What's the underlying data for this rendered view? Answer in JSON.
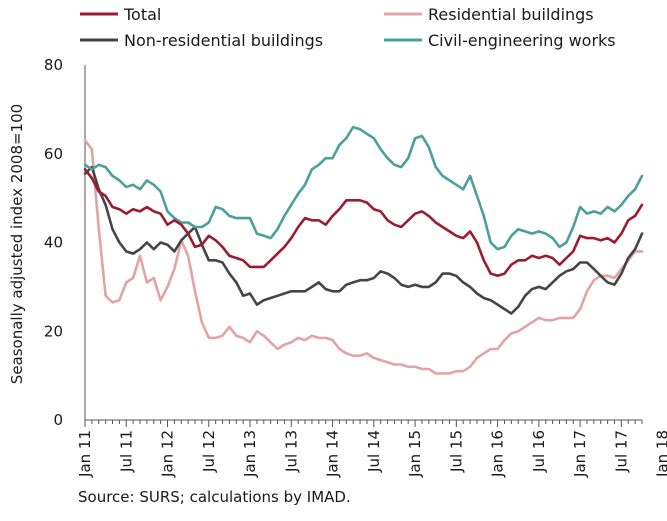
{
  "chart_data": {
    "type": "line",
    "ylabel": "Seasonally adjusted index 2008=100",
    "ylim": [
      0,
      80
    ],
    "yticks": [
      0,
      20,
      40,
      60,
      80
    ],
    "grid": false,
    "legend": "top",
    "x_tick_labels": [
      "Jan 11",
      "Jul 11",
      "Jan 12",
      "Jul 12",
      "Jan 13",
      "Jul 13",
      "Jan 14",
      "Jul 14",
      "Jan 15",
      "Jul 15",
      "Jan 16",
      "Jul 16",
      "Jan 17",
      "Jul 17",
      "Jan 18"
    ],
    "x_start": "Jan 11",
    "frequency": "monthly",
    "series": [
      {
        "name": "Total",
        "color": "#9b1b30",
        "values": [
          56.5,
          54.5,
          51.5,
          50.5,
          48,
          47.5,
          46.5,
          47.5,
          47,
          48,
          47,
          46.5,
          44,
          45,
          44,
          42,
          39,
          39.5,
          41.5,
          40.5,
          39,
          37,
          36.5,
          36,
          34.5,
          34.5,
          34.5,
          36,
          37.5,
          39,
          41,
          43.5,
          45.5,
          45,
          45,
          44,
          46,
          47.5,
          49.5,
          49.5,
          49.5,
          49,
          47.5,
          47,
          45,
          44,
          43.5,
          45,
          46.5,
          47,
          46,
          44.5,
          43.5,
          42.5,
          41.5,
          41,
          42.5,
          40,
          36,
          33,
          32.5,
          33,
          35,
          36,
          36,
          37,
          36.5,
          37,
          36.5,
          35,
          36.5,
          38,
          41.5,
          41,
          41,
          40.5,
          41,
          40,
          42,
          45,
          46,
          48.5
        ]
      },
      {
        "name": "Residential buildings",
        "color": "#e3a3a6",
        "values": [
          63,
          61,
          43,
          28,
          26.5,
          27,
          31,
          32,
          37,
          31,
          32,
          27,
          30,
          34,
          40.5,
          37,
          29,
          22,
          18.5,
          18.5,
          19,
          21,
          19,
          18.5,
          17.5,
          20,
          19,
          17.5,
          16,
          17,
          17.5,
          18.5,
          18,
          19,
          18.5,
          18.5,
          18,
          16,
          15,
          14.5,
          14.5,
          15,
          14,
          13.5,
          13,
          12.5,
          12.5,
          12,
          12,
          11.5,
          11.5,
          10.5,
          10.5,
          10.5,
          11,
          11,
          12,
          14,
          15,
          16,
          16,
          18,
          19.5,
          20,
          21,
          22,
          23,
          22.5,
          22.5,
          23,
          23,
          23,
          25,
          29,
          31.5,
          32.5,
          32.5,
          32,
          34,
          36,
          38,
          38
        ]
      },
      {
        "name": "Non-residential buildings",
        "color": "#454545",
        "values": [
          55.5,
          57,
          52,
          48.5,
          43,
          40,
          38,
          37.5,
          38.5,
          40,
          38.5,
          40,
          39.5,
          38,
          40.5,
          42,
          43.5,
          39.5,
          36,
          36,
          35.5,
          33,
          31,
          28,
          28.5,
          26,
          27,
          27.5,
          28,
          28.5,
          29,
          29,
          29,
          30,
          31,
          29.5,
          29,
          29,
          30.5,
          31,
          31.5,
          31.5,
          32,
          33.5,
          33,
          32,
          30.5,
          30,
          30.5,
          30,
          30,
          31,
          33,
          33,
          32.5,
          31,
          30,
          28.5,
          27.5,
          27,
          26,
          25,
          24,
          25.5,
          28,
          29.5,
          30,
          29.5,
          31,
          32.5,
          33.5,
          34,
          35.5,
          35.5,
          34,
          32.5,
          31,
          30.5,
          33,
          36.5,
          38.5,
          42
        ]
      },
      {
        "name": "Civil-engineering works",
        "color": "#4ba09b",
        "values": [
          57.5,
          56.5,
          57.5,
          57,
          55,
          54,
          52.5,
          53,
          52,
          54,
          53,
          51.5,
          47,
          45.5,
          44.5,
          44.5,
          43.5,
          43.5,
          44.5,
          48,
          47.5,
          46,
          45.5,
          45.5,
          45.5,
          42,
          41.5,
          41,
          43,
          46,
          48.5,
          51,
          53,
          56.5,
          57.5,
          59,
          59,
          62,
          63.5,
          66,
          65.5,
          64.5,
          63.5,
          61,
          59,
          57.5,
          57,
          59,
          63.5,
          64,
          61.5,
          57,
          55,
          54,
          53,
          52,
          55,
          50.5,
          46,
          40,
          38.5,
          39,
          41.5,
          43,
          42.5,
          42,
          42.5,
          42,
          41,
          39,
          40,
          43.5,
          48,
          46.5,
          47,
          46.5,
          48,
          47,
          48.5,
          50.5,
          52,
          55
        ]
      }
    ],
    "annotations": []
  },
  "source_note": "Source: SURS; calculations by IMAD."
}
